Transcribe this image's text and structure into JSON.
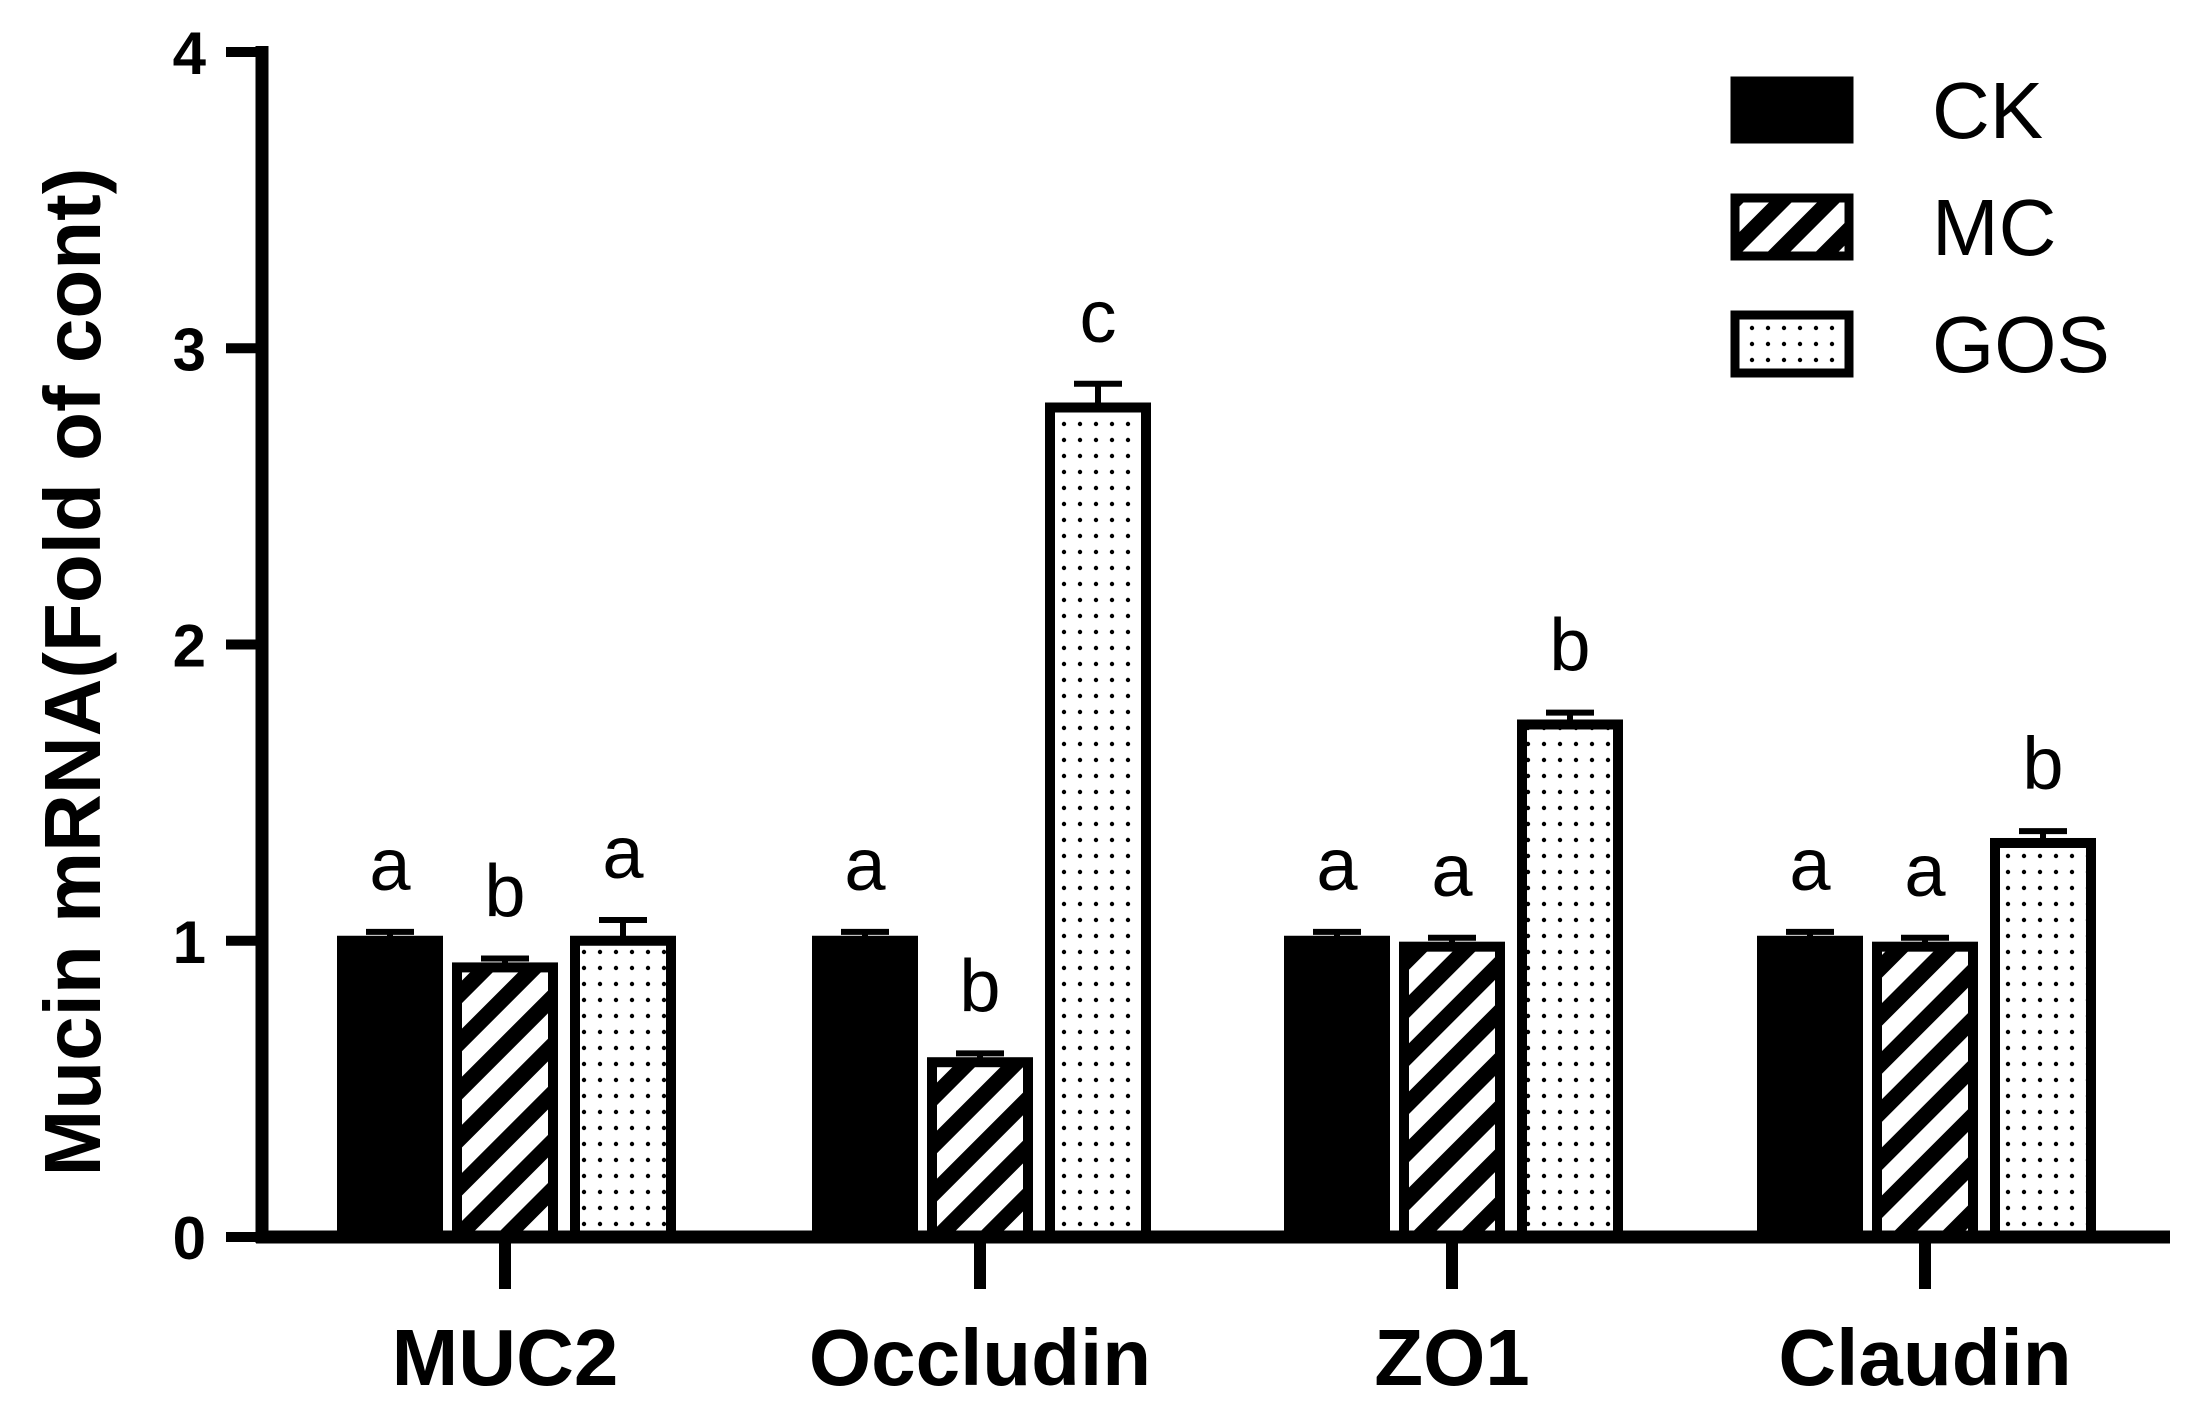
{
  "chart_data": {
    "type": "bar",
    "title": "",
    "xlabel": "",
    "ylabel": "Mucin mRNA(Fold of cont)",
    "ylim": [
      0,
      4
    ],
    "yticks": [
      0,
      1,
      2,
      3,
      4
    ],
    "categories": [
      "MUC2",
      "Occludin",
      "ZO1",
      "Claudin"
    ],
    "legend_position": "top-right",
    "series": [
      {
        "name": "CK",
        "fill": "solid",
        "color": "#000000",
        "values": [
          1.0,
          1.0,
          1.0,
          1.0
        ],
        "errors": [
          0.03,
          0.03,
          0.03,
          0.03
        ],
        "letters": [
          "a",
          "a",
          "a",
          "a"
        ]
      },
      {
        "name": "MC",
        "fill": "hatch",
        "color": "#000000",
        "values": [
          0.91,
          0.59,
          0.98,
          0.98
        ],
        "errors": [
          0.03,
          0.03,
          0.03,
          0.03
        ],
        "letters": [
          "b",
          "b",
          "a",
          "a"
        ]
      },
      {
        "name": "GOS",
        "fill": "dots",
        "color": "#000000",
        "values": [
          1.0,
          2.8,
          1.73,
          1.33
        ],
        "errors": [
          0.07,
          0.08,
          0.04,
          0.04
        ],
        "letters": [
          "a",
          "c",
          "b",
          "b"
        ]
      }
    ]
  }
}
